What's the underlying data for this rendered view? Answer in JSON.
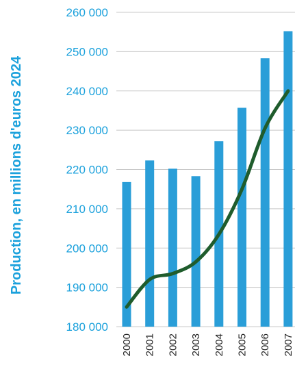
{
  "chart_data": {
    "type": "bar",
    "ylabel": "Production, en millions d'euros 2024",
    "categories": [
      "2000",
      "2001",
      "2002",
      "2003",
      "2004",
      "2005",
      "2006",
      "2007"
    ],
    "series": [
      {
        "type": "bar",
        "values": [
          216800,
          222300,
          220200,
          218300,
          227200,
          235700,
          248300,
          255200
        ]
      },
      {
        "type": "line",
        "values": [
          185000,
          192000,
          193500,
          196500,
          203500,
          215000,
          230500,
          240000
        ]
      }
    ],
    "ylim": [
      180000,
      260000
    ],
    "yticks": [
      {
        "value": 260000,
        "label": "260 000"
      },
      {
        "value": 250000,
        "label": "250 000"
      },
      {
        "value": 240000,
        "label": "240 000"
      },
      {
        "value": 230000,
        "label": "230 000"
      },
      {
        "value": 220000,
        "label": "220 000"
      },
      {
        "value": 210000,
        "label": "210 000"
      },
      {
        "value": 200000,
        "label": "200 000"
      },
      {
        "value": 190000,
        "label": "190 000"
      },
      {
        "value": 180000,
        "label": "180 000"
      }
    ],
    "grid": true,
    "colors": {
      "bar": "#2a9ed8",
      "line": "#1f5c2c",
      "tick": "#1ba1dc",
      "grid": "#c8c8c8"
    }
  }
}
